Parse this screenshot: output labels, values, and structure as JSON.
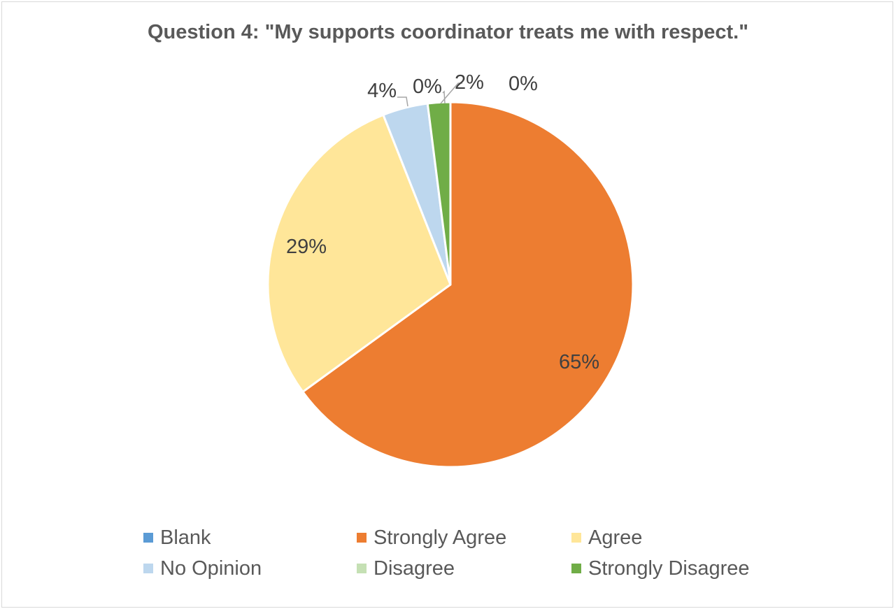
{
  "chart_data": {
    "type": "pie",
    "title": "Question 4: \"My supports coordinator treats me with respect.\"",
    "slices": [
      {
        "name": "Blank",
        "value": 0,
        "label": "0%",
        "color": "#5b9bd5"
      },
      {
        "name": "Strongly Agree",
        "value": 65,
        "label": "65%",
        "color": "#ed7d31"
      },
      {
        "name": "Agree",
        "value": 29,
        "label": "29%",
        "color": "#ffe699"
      },
      {
        "name": "No Opinion",
        "value": 4,
        "label": "4%",
        "color": "#bdd7ee"
      },
      {
        "name": "Disagree",
        "value": 0,
        "label": "0%",
        "color": "#c5e0b4"
      },
      {
        "name": "Strongly Disagree",
        "value": 2,
        "label": "2%",
        "color": "#70ad47"
      }
    ],
    "legend_position": "bottom"
  }
}
